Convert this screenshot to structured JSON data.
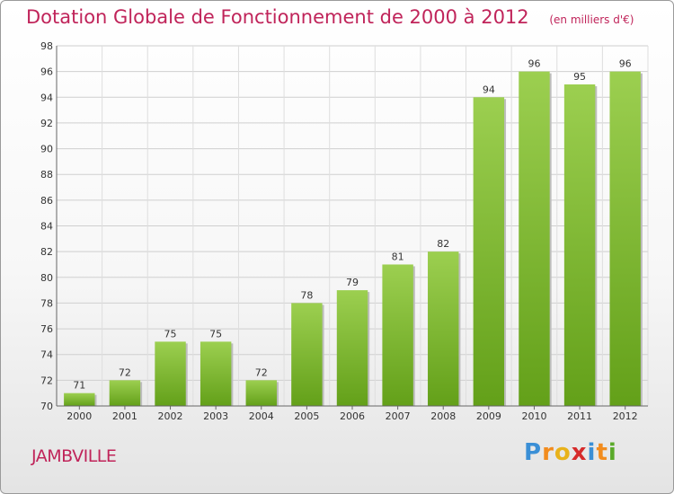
{
  "chart_data": {
    "type": "bar",
    "title": "Dotation Globale de Fonctionnement de 2000 à 2012",
    "subtitle": "(en milliers d'€)",
    "categories": [
      "2000",
      "2001",
      "2002",
      "2003",
      "2004",
      "2005",
      "2006",
      "2007",
      "2008",
      "2009",
      "2010",
      "2011",
      "2012"
    ],
    "values": [
      71,
      72,
      75,
      75,
      72,
      78,
      79,
      81,
      82,
      94,
      96,
      95,
      96
    ],
    "ylim": [
      70,
      98
    ],
    "yticks": [
      70,
      72,
      74,
      76,
      78,
      80,
      82,
      84,
      86,
      88,
      90,
      92,
      94,
      96,
      98
    ],
    "grid": true,
    "bar_color_top": "#9ccf50",
    "bar_color_bottom": "#63a019"
  },
  "commune": "JAMBVILLE",
  "logo": {
    "letters": [
      "P",
      "r",
      "o",
      "x",
      "i",
      "t",
      "i"
    ],
    "colors": [
      "#3a8fd6",
      "#f28c1e",
      "#e8b21a",
      "#d62b2b",
      "#3a8fd6",
      "#f28c1e",
      "#5aaa2a"
    ]
  }
}
